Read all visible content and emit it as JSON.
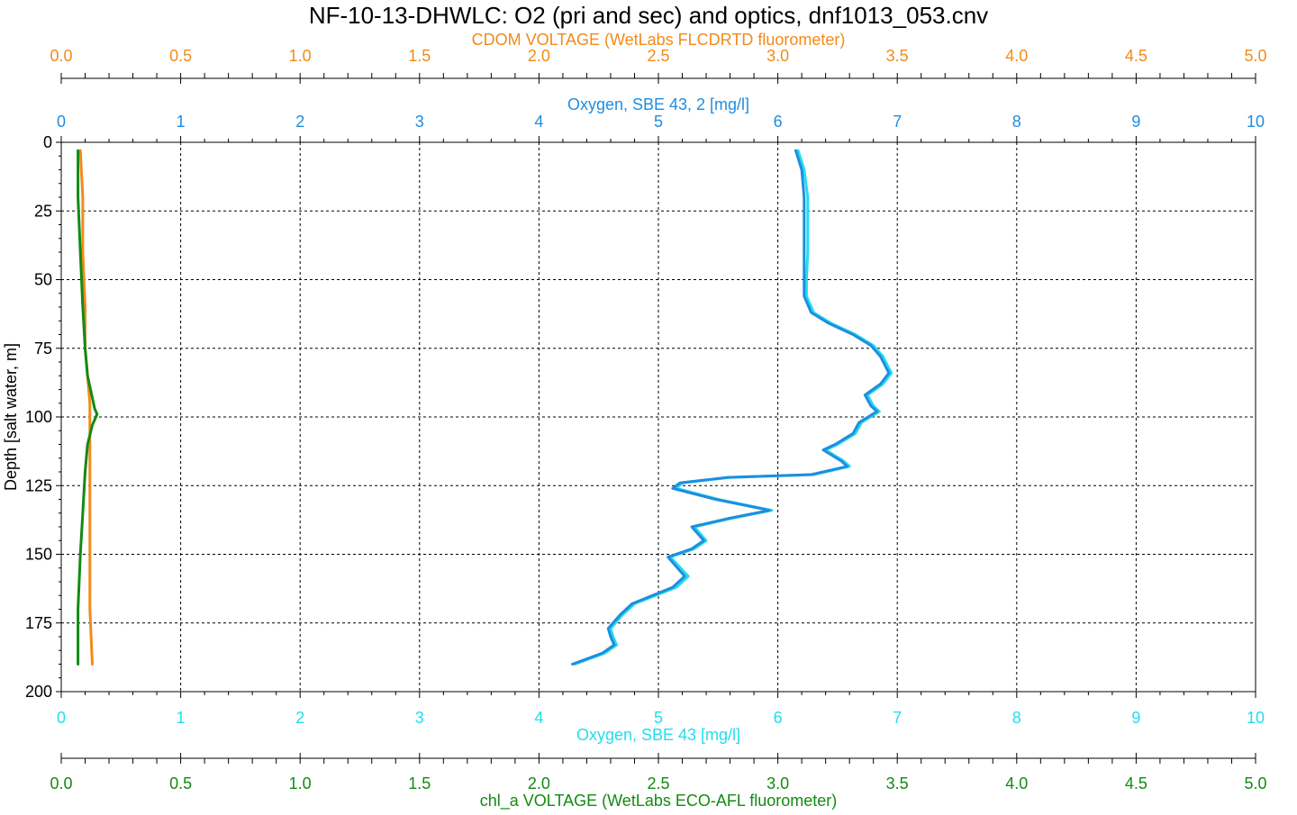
{
  "chart_data": {
    "type": "line",
    "title": "NF-10-13-DHWLC: O2 (pri and sec) and optics, dnf1013_053.cnv",
    "colors": {
      "cdom": "#f28a1c",
      "oxygen2": "#1f8de0",
      "oxygen": "#22ddee",
      "chl": "#138a13",
      "grid": "#000000"
    },
    "y_axis": {
      "label": "Depth [salt water, m]",
      "range": [
        0,
        200
      ],
      "inverted": true,
      "ticks": [
        "0",
        "25",
        "50",
        "75",
        "100",
        "125",
        "150",
        "175",
        "200"
      ]
    },
    "x_axes": [
      {
        "key": "cdom",
        "label": "CDOM VOLTAGE (WetLabs FLCDRTD fluorometer)",
        "range": [
          0,
          5
        ],
        "position": "top-outer",
        "ticks": [
          "0.0",
          "0.5",
          "1.0",
          "1.5",
          "2.0",
          "2.5",
          "3.0",
          "3.5",
          "4.0",
          "4.5",
          "5.0"
        ]
      },
      {
        "key": "oxygen2",
        "label": "Oxygen, SBE 43, 2 [mg/l]",
        "range": [
          0,
          10
        ],
        "position": "top-inner",
        "ticks": [
          "0",
          "1",
          "2",
          "3",
          "4",
          "5",
          "6",
          "7",
          "8",
          "9",
          "10"
        ]
      },
      {
        "key": "oxygen",
        "label": "Oxygen, SBE 43 [mg/l]",
        "range": [
          0,
          10
        ],
        "position": "bottom-inner",
        "ticks": [
          "0",
          "1",
          "2",
          "3",
          "4",
          "5",
          "6",
          "7",
          "8",
          "9",
          "10"
        ]
      },
      {
        "key": "chl",
        "label": "chl_a VOLTAGE (WetLabs ECO-AFL fluorometer)",
        "range": [
          0,
          5
        ],
        "position": "bottom-outer",
        "ticks": [
          "0.0",
          "0.5",
          "1.0",
          "1.5",
          "2.0",
          "2.5",
          "3.0",
          "3.5",
          "4.0",
          "4.5",
          "5.0"
        ]
      }
    ],
    "grid": true,
    "series": [
      {
        "key": "cdom",
        "axis": "cdom",
        "points": [
          [
            0.08,
            3
          ],
          [
            0.09,
            20
          ],
          [
            0.09,
            40
          ],
          [
            0.1,
            60
          ],
          [
            0.1,
            75
          ],
          [
            0.11,
            85
          ],
          [
            0.12,
            95
          ],
          [
            0.12,
            110
          ],
          [
            0.12,
            130
          ],
          [
            0.12,
            150
          ],
          [
            0.12,
            170
          ],
          [
            0.13,
            190
          ]
        ]
      },
      {
        "key": "chl",
        "axis": "chl",
        "points": [
          [
            0.07,
            3
          ],
          [
            0.07,
            20
          ],
          [
            0.08,
            40
          ],
          [
            0.09,
            60
          ],
          [
            0.1,
            75
          ],
          [
            0.11,
            85
          ],
          [
            0.13,
            93
          ],
          [
            0.14,
            97
          ],
          [
            0.15,
            99
          ],
          [
            0.13,
            103
          ],
          [
            0.11,
            110
          ],
          [
            0.1,
            120
          ],
          [
            0.09,
            135
          ],
          [
            0.08,
            150
          ],
          [
            0.07,
            170
          ],
          [
            0.07,
            190
          ]
        ]
      },
      {
        "key": "oxygen",
        "axis": "oxygen",
        "points": [
          [
            6.17,
            3
          ],
          [
            6.22,
            10
          ],
          [
            6.25,
            20
          ],
          [
            6.25,
            30
          ],
          [
            6.25,
            40
          ],
          [
            6.24,
            50
          ],
          [
            6.24,
            56
          ],
          [
            6.3,
            62
          ],
          [
            6.45,
            66
          ],
          [
            6.65,
            70
          ],
          [
            6.8,
            74
          ],
          [
            6.88,
            78
          ],
          [
            6.95,
            84
          ],
          [
            6.88,
            88
          ],
          [
            6.75,
            92
          ],
          [
            6.8,
            96
          ],
          [
            6.85,
            98
          ],
          [
            6.7,
            102
          ],
          [
            6.65,
            106
          ],
          [
            6.5,
            110
          ],
          [
            6.4,
            112
          ],
          [
            6.55,
            116
          ],
          [
            6.6,
            118
          ],
          [
            6.3,
            121
          ],
          [
            5.6,
            122
          ],
          [
            5.2,
            124
          ],
          [
            5.15,
            126
          ],
          [
            5.5,
            130
          ],
          [
            5.95,
            134
          ],
          [
            5.6,
            137
          ],
          [
            5.3,
            140
          ],
          [
            5.4,
            145
          ],
          [
            5.3,
            148
          ],
          [
            5.1,
            151
          ],
          [
            5.25,
            158
          ],
          [
            5.15,
            162
          ],
          [
            4.8,
            168
          ],
          [
            4.7,
            172
          ],
          [
            4.6,
            177
          ],
          [
            4.62,
            180
          ],
          [
            4.65,
            183
          ],
          [
            4.55,
            186
          ],
          [
            4.3,
            190
          ]
        ]
      },
      {
        "key": "oxygen2",
        "axis": "oxygen2",
        "points": [
          [
            6.15,
            3
          ],
          [
            6.2,
            10
          ],
          [
            6.22,
            20
          ],
          [
            6.22,
            30
          ],
          [
            6.22,
            40
          ],
          [
            6.22,
            50
          ],
          [
            6.22,
            56
          ],
          [
            6.28,
            62
          ],
          [
            6.43,
            66
          ],
          [
            6.63,
            70
          ],
          [
            6.78,
            74
          ],
          [
            6.86,
            78
          ],
          [
            6.93,
            84
          ],
          [
            6.86,
            88
          ],
          [
            6.73,
            92
          ],
          [
            6.78,
            96
          ],
          [
            6.83,
            98
          ],
          [
            6.68,
            102
          ],
          [
            6.63,
            106
          ],
          [
            6.48,
            110
          ],
          [
            6.38,
            112
          ],
          [
            6.53,
            116
          ],
          [
            6.58,
            118
          ],
          [
            6.28,
            121
          ],
          [
            5.58,
            122
          ],
          [
            5.18,
            124
          ],
          [
            5.12,
            126
          ],
          [
            5.48,
            130
          ],
          [
            5.93,
            134
          ],
          [
            5.58,
            137
          ],
          [
            5.28,
            140
          ],
          [
            5.38,
            145
          ],
          [
            5.28,
            148
          ],
          [
            5.08,
            151
          ],
          [
            5.22,
            158
          ],
          [
            5.12,
            162
          ],
          [
            4.78,
            168
          ],
          [
            4.68,
            172
          ],
          [
            4.58,
            177
          ],
          [
            4.6,
            180
          ],
          [
            4.63,
            183
          ],
          [
            4.53,
            186
          ],
          [
            4.28,
            190
          ]
        ]
      }
    ]
  }
}
